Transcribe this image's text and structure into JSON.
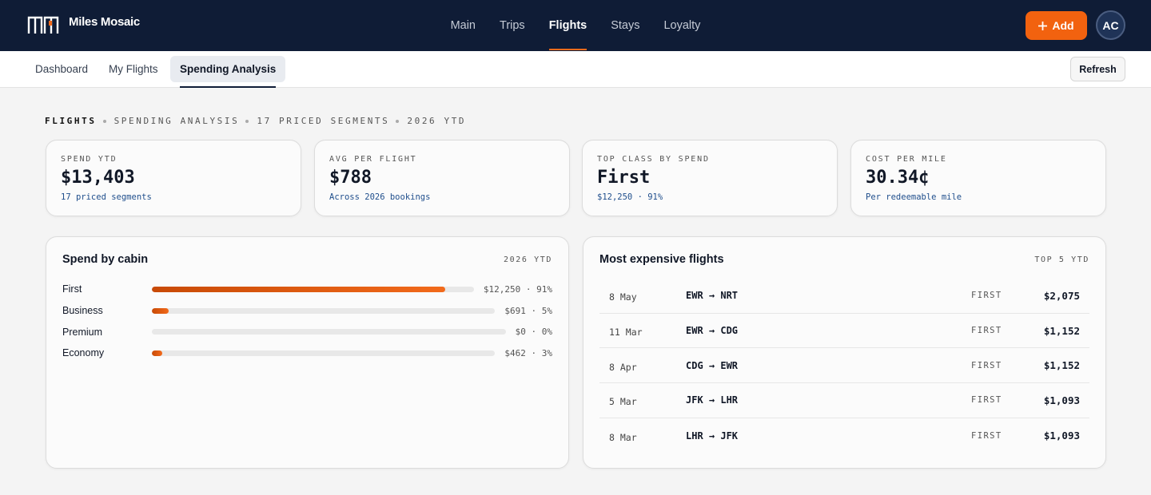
{
  "header": {
    "brand": "Miles Mosaic",
    "nav": [
      "Main",
      "Trips",
      "Flights",
      "Stays",
      "Loyalty"
    ],
    "active_nav": 2,
    "add_button": "Add",
    "avatar": "AC"
  },
  "subnav": {
    "tabs": [
      "Dashboard",
      "My Flights",
      "Spending Analysis"
    ],
    "active_tab": 2,
    "refresh": "Refresh"
  },
  "breadcrumb": [
    "FLIGHTS",
    "SPENDING ANALYSIS",
    "17 PRICED SEGMENTS",
    "2026 YTD"
  ],
  "kpis": [
    {
      "label": "SPEND YTD",
      "value": "$13,403",
      "sub": "17 priced segments"
    },
    {
      "label": "AVG PER FLIGHT",
      "value": "$788",
      "sub": "Across 2026 bookings"
    },
    {
      "label": "TOP CLASS BY SPEND",
      "value": "First",
      "sub": "$12,250 · 91%"
    },
    {
      "label": "COST PER MILE",
      "value": "30.34¢",
      "sub": "Per redeemable mile"
    }
  ],
  "cabin_panel": {
    "title": "Spend by cabin",
    "tag": "2026 YTD",
    "rows": [
      {
        "name": "First",
        "share": 91,
        "label": "$12,250 · 91%"
      },
      {
        "name": "Business",
        "share": 5,
        "label": "$691 · 5%"
      },
      {
        "name": "Premium",
        "share": 0,
        "label": "$0 · 0%"
      },
      {
        "name": "Economy",
        "share": 3,
        "label": "$462 · 3%"
      }
    ]
  },
  "flights_panel": {
    "title": "Most expensive flights",
    "tag": "TOP 5 YTD",
    "rows": [
      {
        "date": "8 May",
        "route": "EWR → NRT",
        "class": "FIRST",
        "price": "$2,075"
      },
      {
        "date": "11 Mar",
        "route": "EWR → CDG",
        "class": "FIRST",
        "price": "$1,152"
      },
      {
        "date": "8 Apr",
        "route": "CDG → EWR",
        "class": "FIRST",
        "price": "$1,152"
      },
      {
        "date": "5 Mar",
        "route": "JFK → LHR",
        "class": "FIRST",
        "price": "$1,093"
      },
      {
        "date": "8 Mar",
        "route": "LHR → JFK",
        "class": "FIRST",
        "price": "$1,093"
      }
    ]
  }
}
